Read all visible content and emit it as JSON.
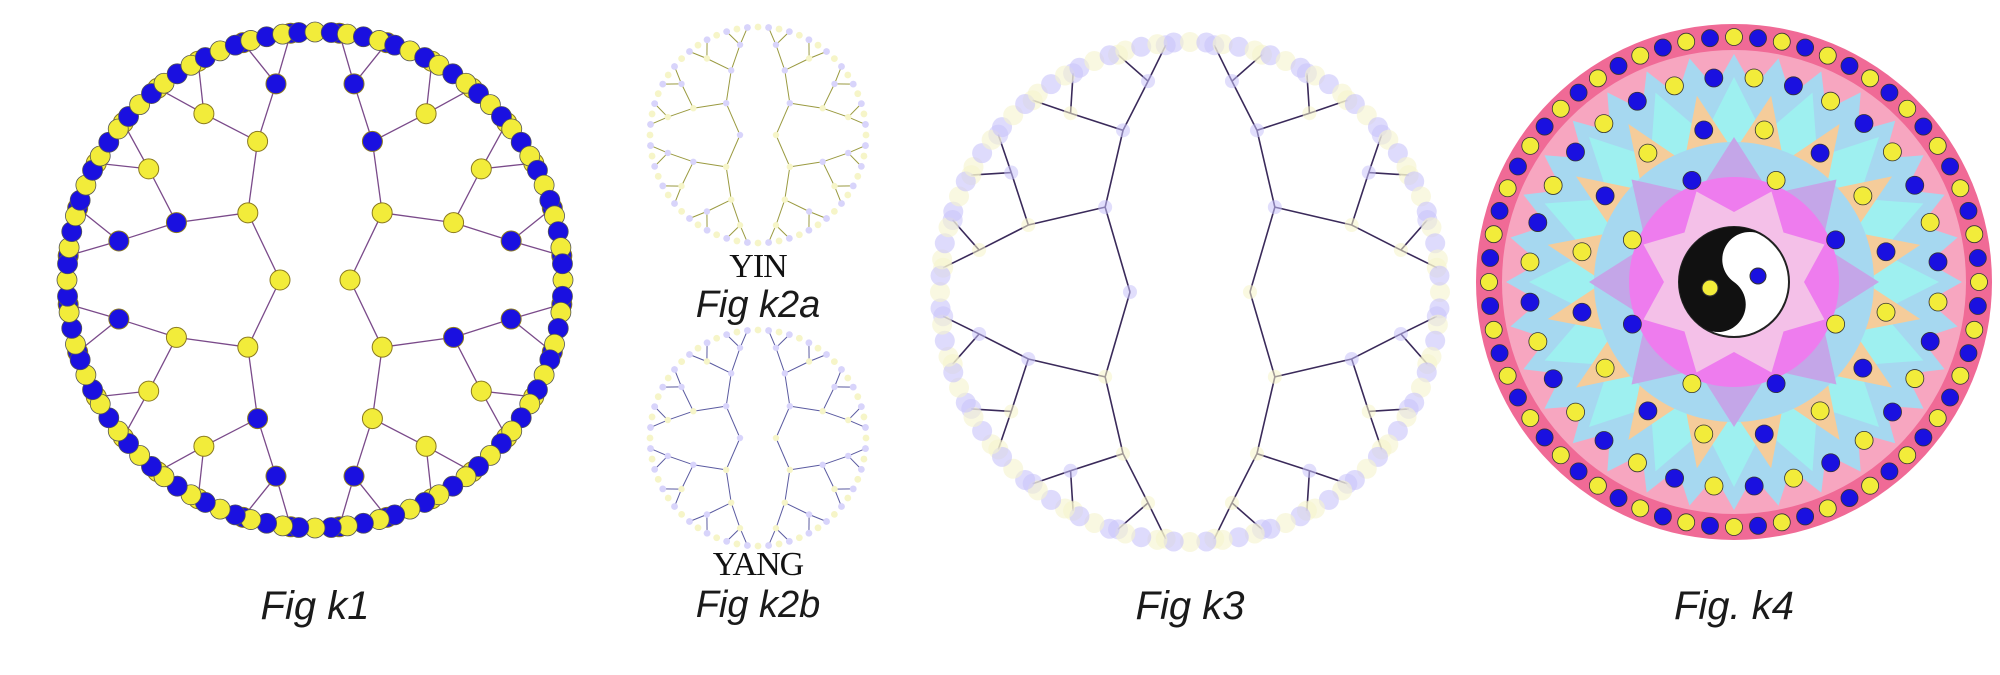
{
  "captions": {
    "k1": "Fig k1",
    "k2a": "Fig k2a",
    "k2b": "Fig k2b",
    "k3": "Fig k3",
    "k4": "Fig. k4"
  },
  "labels": {
    "yin": "YIN",
    "yang": "YANG"
  },
  "colors": {
    "blue": "#1a10e0",
    "yellow": "#f2ec3a",
    "edge": "#7a4a8a",
    "pale_blue": "#d8d4fb",
    "pale_yellow": "#f6f5c8",
    "dark_edge": "#3a2a5a",
    "k4_outer_ring": "#f06a96",
    "k4_pink": "#f7a6c0",
    "k4_sky": "#a6d8f0",
    "k4_cyan": "#9ef0f0",
    "k4_peach": "#f5cc9a",
    "k4_lavender": "#c4a6e8",
    "k4_magenta": "#ee7cee",
    "k4_light_pink": "#f4c0e8"
  },
  "figures": [
    {
      "id": "k1",
      "kind": "colored-node-tree",
      "leaf_count": 96
    },
    {
      "id": "k2a",
      "kind": "faint-tree",
      "label": "YIN"
    },
    {
      "id": "k2b",
      "kind": "faint-tree",
      "label": "YANG"
    },
    {
      "id": "k3",
      "kind": "outline-tree"
    },
    {
      "id": "k4",
      "kind": "mandala-with-yin-yang",
      "outer_ring_dots": 64,
      "middle_ring_dots": 32,
      "inner_ring_dots": 16
    }
  ]
}
